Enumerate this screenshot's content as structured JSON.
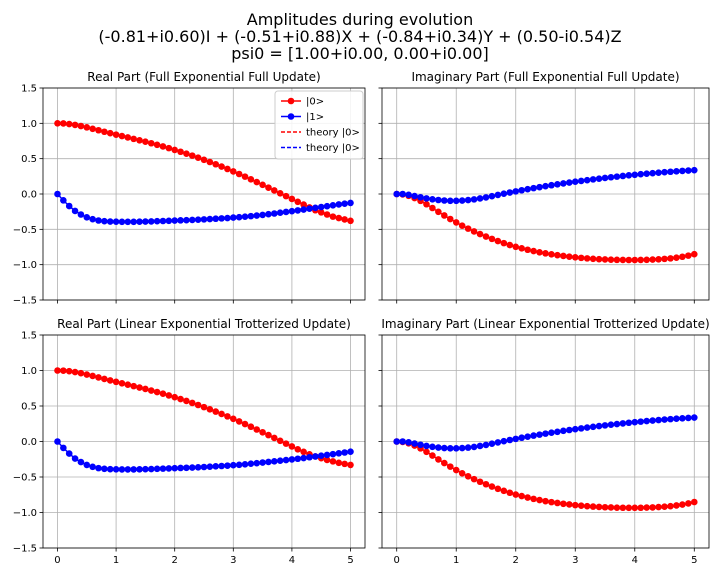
{
  "figure": {
    "title_lines": [
      "Amplitudes during evolution",
      "(-0.81+i0.60)I + (-0.51+i0.88)X + (-0.84+i0.34)Y + (0.50-i0.54)Z",
      "psi0 = [1.00+i0.00, 0.00+i0.00]"
    ]
  },
  "colors": {
    "state0": "#ff0000",
    "state1": "#0000ff",
    "grid": "#b0b0b0"
  },
  "chart_data": [
    {
      "type": "line",
      "title": "Real Part (Full Exponential Full Update)",
      "xlim": [
        0,
        5
      ],
      "ylim": [
        -1.5,
        1.5
      ],
      "xticks": [
        0,
        1,
        2,
        3,
        4,
        5
      ],
      "yticks": [
        -1.5,
        -1.0,
        -0.5,
        0.0,
        0.5,
        1.0,
        1.5
      ],
      "ytick_labels": [
        "−1.5",
        "−1.0",
        "−0.5",
        "0.0",
        "0.5",
        "1.0",
        "1.5"
      ],
      "show_xtick_labels": false,
      "show_ytick_labels": true,
      "grid": true,
      "legend": "top-right",
      "legend_entries": [
        {
          "label": "|0>",
          "color": "#ff0000",
          "style": "marker-line"
        },
        {
          "label": "|1>",
          "color": "#0000ff",
          "style": "marker-line"
        },
        {
          "label": "theory |0>",
          "color": "#ff0000",
          "style": "dashed"
        },
        {
          "label": "theory |0>",
          "color": "#0000ff",
          "style": "dashed"
        }
      ],
      "x": [
        0,
        0.1,
        0.2,
        0.3,
        0.4,
        0.5,
        0.6,
        0.7,
        0.8,
        0.9,
        1.0,
        1.1,
        1.2,
        1.3,
        1.4,
        1.5,
        1.6,
        1.7,
        1.8,
        1.9,
        2.0,
        2.1,
        2.2,
        2.3,
        2.4,
        2.5,
        2.6,
        2.7,
        2.8,
        2.9,
        3.0,
        3.1,
        3.2,
        3.3,
        3.4,
        3.5,
        3.6,
        3.7,
        3.8,
        3.9,
        4.0,
        4.1,
        4.2,
        4.3,
        4.4,
        4.5,
        4.6,
        4.7,
        4.8,
        4.9,
        5.0
      ],
      "series": [
        {
          "name": "|0>",
          "color": "#ff0000",
          "values": [
            1.0,
            0.998,
            0.99,
            0.978,
            0.962,
            0.943,
            0.923,
            0.902,
            0.881,
            0.86,
            0.84,
            0.82,
            0.8,
            0.78,
            0.76,
            0.74,
            0.718,
            0.696,
            0.673,
            0.649,
            0.624,
            0.598,
            0.571,
            0.543,
            0.514,
            0.484,
            0.453,
            0.421,
            0.388,
            0.354,
            0.319,
            0.283,
            0.246,
            0.208,
            0.169,
            0.13,
            0.09,
            0.05,
            0.01,
            -0.03,
            -0.07,
            -0.11,
            -0.15,
            -0.19,
            -0.23,
            -0.26,
            -0.29,
            -0.32,
            -0.34,
            -0.36,
            -0.38
          ]
        },
        {
          "name": "|1>",
          "color": "#0000ff",
          "values": [
            0.0,
            -0.09,
            -0.17,
            -0.24,
            -0.29,
            -0.33,
            -0.357,
            -0.375,
            -0.385,
            -0.39,
            -0.392,
            -0.393,
            -0.393,
            -0.393,
            -0.392,
            -0.39,
            -0.388,
            -0.385,
            -0.382,
            -0.379,
            -0.376,
            -0.373,
            -0.37,
            -0.367,
            -0.363,
            -0.359,
            -0.355,
            -0.35,
            -0.345,
            -0.34,
            -0.334,
            -0.328,
            -0.321,
            -0.313,
            -0.305,
            -0.296,
            -0.286,
            -0.276,
            -0.265,
            -0.254,
            -0.243,
            -0.232,
            -0.22,
            -0.208,
            -0.196,
            -0.184,
            -0.172,
            -0.16,
            -0.148,
            -0.137,
            -0.126
          ]
        }
      ]
    },
    {
      "type": "line",
      "title": "Imaginary Part (Full Exponential Full Update)",
      "xlim": [
        0,
        5
      ],
      "ylim": [
        -1.5,
        1.5
      ],
      "xticks": [
        0,
        1,
        2,
        3,
        4,
        5
      ],
      "yticks": [
        -1.5,
        -1.0,
        -0.5,
        0.0,
        0.5,
        1.0,
        1.5
      ],
      "ytick_labels": [
        "−1.5",
        "−1.0",
        "−0.5",
        "0.0",
        "0.5",
        "1.0",
        "1.5"
      ],
      "show_xtick_labels": false,
      "show_ytick_labels": false,
      "grid": true,
      "x": [
        0,
        0.1,
        0.2,
        0.3,
        0.4,
        0.5,
        0.6,
        0.7,
        0.8,
        0.9,
        1.0,
        1.1,
        1.2,
        1.3,
        1.4,
        1.5,
        1.6,
        1.7,
        1.8,
        1.9,
        2.0,
        2.1,
        2.2,
        2.3,
        2.4,
        2.5,
        2.6,
        2.7,
        2.8,
        2.9,
        3.0,
        3.1,
        3.2,
        3.3,
        3.4,
        3.5,
        3.6,
        3.7,
        3.8,
        3.9,
        4.0,
        4.1,
        4.2,
        4.3,
        4.4,
        4.5,
        4.6,
        4.7,
        4.8,
        4.9,
        5.0
      ],
      "series": [
        {
          "name": "|0>",
          "color": "#ff0000",
          "values": [
            0.0,
            -0.006,
            -0.026,
            -0.057,
            -0.097,
            -0.145,
            -0.198,
            -0.252,
            -0.304,
            -0.354,
            -0.402,
            -0.448,
            -0.49,
            -0.53,
            -0.567,
            -0.602,
            -0.635,
            -0.666,
            -0.695,
            -0.722,
            -0.747,
            -0.769,
            -0.789,
            -0.808,
            -0.825,
            -0.84,
            -0.854,
            -0.866,
            -0.877,
            -0.887,
            -0.896,
            -0.904,
            -0.911,
            -0.917,
            -0.922,
            -0.926,
            -0.929,
            -0.932,
            -0.933,
            -0.934,
            -0.934,
            -0.933,
            -0.931,
            -0.928,
            -0.924,
            -0.918,
            -0.911,
            -0.901,
            -0.888,
            -0.872,
            -0.852
          ]
        },
        {
          "name": "|1>",
          "color": "#0000ff",
          "values": [
            0.0,
            0.0,
            -0.012,
            -0.029,
            -0.046,
            -0.062,
            -0.075,
            -0.085,
            -0.092,
            -0.096,
            -0.096,
            -0.093,
            -0.086,
            -0.076,
            -0.063,
            -0.048,
            -0.031,
            -0.013,
            0.004,
            0.021,
            0.037,
            0.053,
            0.068,
            0.083,
            0.097,
            0.111,
            0.124,
            0.137,
            0.15,
            0.162,
            0.174,
            0.185,
            0.196,
            0.207,
            0.217,
            0.227,
            0.237,
            0.246,
            0.255,
            0.264,
            0.272,
            0.28,
            0.288,
            0.295,
            0.302,
            0.309,
            0.315,
            0.321,
            0.327,
            0.332,
            0.337
          ]
        }
      ]
    },
    {
      "type": "line",
      "title": "Real Part (Linear Exponential Trotterized Update)",
      "xlim": [
        0,
        5
      ],
      "ylim": [
        -1.5,
        1.5
      ],
      "xticks": [
        0,
        1,
        2,
        3,
        4,
        5
      ],
      "yticks": [
        -1.5,
        -1.0,
        -0.5,
        0.0,
        0.5,
        1.0,
        1.5
      ],
      "ytick_labels": [
        "−1.5",
        "−1.0",
        "−0.5",
        "0.0",
        "0.5",
        "1.0",
        "1.5"
      ],
      "show_xtick_labels": true,
      "show_ytick_labels": true,
      "grid": true,
      "x": [
        0,
        0.1,
        0.2,
        0.3,
        0.4,
        0.5,
        0.6,
        0.7,
        0.8,
        0.9,
        1.0,
        1.1,
        1.2,
        1.3,
        1.4,
        1.5,
        1.6,
        1.7,
        1.8,
        1.9,
        2.0,
        2.1,
        2.2,
        2.3,
        2.4,
        2.5,
        2.6,
        2.7,
        2.8,
        2.9,
        3.0,
        3.1,
        3.2,
        3.3,
        3.4,
        3.5,
        3.6,
        3.7,
        3.8,
        3.9,
        4.0,
        4.1,
        4.2,
        4.3,
        4.4,
        4.5,
        4.6,
        4.7,
        4.8,
        4.9,
        5.0
      ],
      "series": [
        {
          "name": "|0>",
          "color": "#ff0000",
          "values": [
            1.0,
            0.998,
            0.99,
            0.978,
            0.962,
            0.943,
            0.923,
            0.902,
            0.881,
            0.86,
            0.84,
            0.82,
            0.8,
            0.78,
            0.76,
            0.74,
            0.718,
            0.696,
            0.673,
            0.649,
            0.624,
            0.598,
            0.571,
            0.543,
            0.514,
            0.484,
            0.453,
            0.421,
            0.388,
            0.354,
            0.319,
            0.283,
            0.246,
            0.208,
            0.169,
            0.13,
            0.09,
            0.05,
            0.01,
            -0.03,
            -0.07,
            -0.11,
            -0.145,
            -0.18,
            -0.21,
            -0.235,
            -0.26,
            -0.28,
            -0.3,
            -0.315,
            -0.33
          ]
        },
        {
          "name": "|1>",
          "color": "#0000ff",
          "values": [
            0.0,
            -0.09,
            -0.17,
            -0.24,
            -0.29,
            -0.33,
            -0.357,
            -0.375,
            -0.385,
            -0.39,
            -0.392,
            -0.393,
            -0.393,
            -0.393,
            -0.392,
            -0.39,
            -0.388,
            -0.385,
            -0.382,
            -0.379,
            -0.376,
            -0.373,
            -0.37,
            -0.367,
            -0.363,
            -0.359,
            -0.355,
            -0.35,
            -0.345,
            -0.34,
            -0.334,
            -0.328,
            -0.321,
            -0.313,
            -0.305,
            -0.296,
            -0.288,
            -0.279,
            -0.27,
            -0.261,
            -0.252,
            -0.243,
            -0.233,
            -0.222,
            -0.211,
            -0.2,
            -0.189,
            -0.178,
            -0.166,
            -0.155,
            -0.144
          ]
        }
      ]
    },
    {
      "type": "line",
      "title": "Imaginary Part (Linear Exponential Trotterized Update)",
      "xlim": [
        0,
        5
      ],
      "ylim": [
        -1.5,
        1.5
      ],
      "xticks": [
        0,
        1,
        2,
        3,
        4,
        5
      ],
      "yticks": [
        -1.5,
        -1.0,
        -0.5,
        0.0,
        0.5,
        1.0,
        1.5
      ],
      "ytick_labels": [
        "−1.5",
        "−1.0",
        "−0.5",
        "0.0",
        "0.5",
        "1.0",
        "1.5"
      ],
      "show_xtick_labels": true,
      "show_ytick_labels": false,
      "grid": true,
      "x": [
        0,
        0.1,
        0.2,
        0.3,
        0.4,
        0.5,
        0.6,
        0.7,
        0.8,
        0.9,
        1.0,
        1.1,
        1.2,
        1.3,
        1.4,
        1.5,
        1.6,
        1.7,
        1.8,
        1.9,
        2.0,
        2.1,
        2.2,
        2.3,
        2.4,
        2.5,
        2.6,
        2.7,
        2.8,
        2.9,
        3.0,
        3.1,
        3.2,
        3.3,
        3.4,
        3.5,
        3.6,
        3.7,
        3.8,
        3.9,
        4.0,
        4.1,
        4.2,
        4.3,
        4.4,
        4.5,
        4.6,
        4.7,
        4.8,
        4.9,
        5.0
      ],
      "series": [
        {
          "name": "|0>",
          "color": "#ff0000",
          "values": [
            0.0,
            -0.006,
            -0.026,
            -0.057,
            -0.097,
            -0.145,
            -0.198,
            -0.252,
            -0.304,
            -0.354,
            -0.402,
            -0.448,
            -0.49,
            -0.53,
            -0.567,
            -0.602,
            -0.635,
            -0.666,
            -0.695,
            -0.722,
            -0.747,
            -0.769,
            -0.789,
            -0.808,
            -0.825,
            -0.84,
            -0.854,
            -0.866,
            -0.877,
            -0.887,
            -0.896,
            -0.904,
            -0.911,
            -0.917,
            -0.922,
            -0.926,
            -0.929,
            -0.932,
            -0.933,
            -0.934,
            -0.934,
            -0.933,
            -0.931,
            -0.928,
            -0.924,
            -0.918,
            -0.911,
            -0.901,
            -0.888,
            -0.872,
            -0.852
          ]
        },
        {
          "name": "|1>",
          "color": "#0000ff",
          "values": [
            0.0,
            0.0,
            -0.012,
            -0.029,
            -0.046,
            -0.062,
            -0.075,
            -0.085,
            -0.092,
            -0.096,
            -0.096,
            -0.093,
            -0.086,
            -0.076,
            -0.063,
            -0.048,
            -0.031,
            -0.013,
            0.004,
            0.021,
            0.037,
            0.053,
            0.068,
            0.083,
            0.097,
            0.111,
            0.124,
            0.137,
            0.15,
            0.162,
            0.174,
            0.185,
            0.196,
            0.207,
            0.217,
            0.227,
            0.237,
            0.246,
            0.255,
            0.264,
            0.272,
            0.28,
            0.288,
            0.295,
            0.302,
            0.309,
            0.315,
            0.321,
            0.327,
            0.332,
            0.337
          ]
        }
      ]
    }
  ]
}
